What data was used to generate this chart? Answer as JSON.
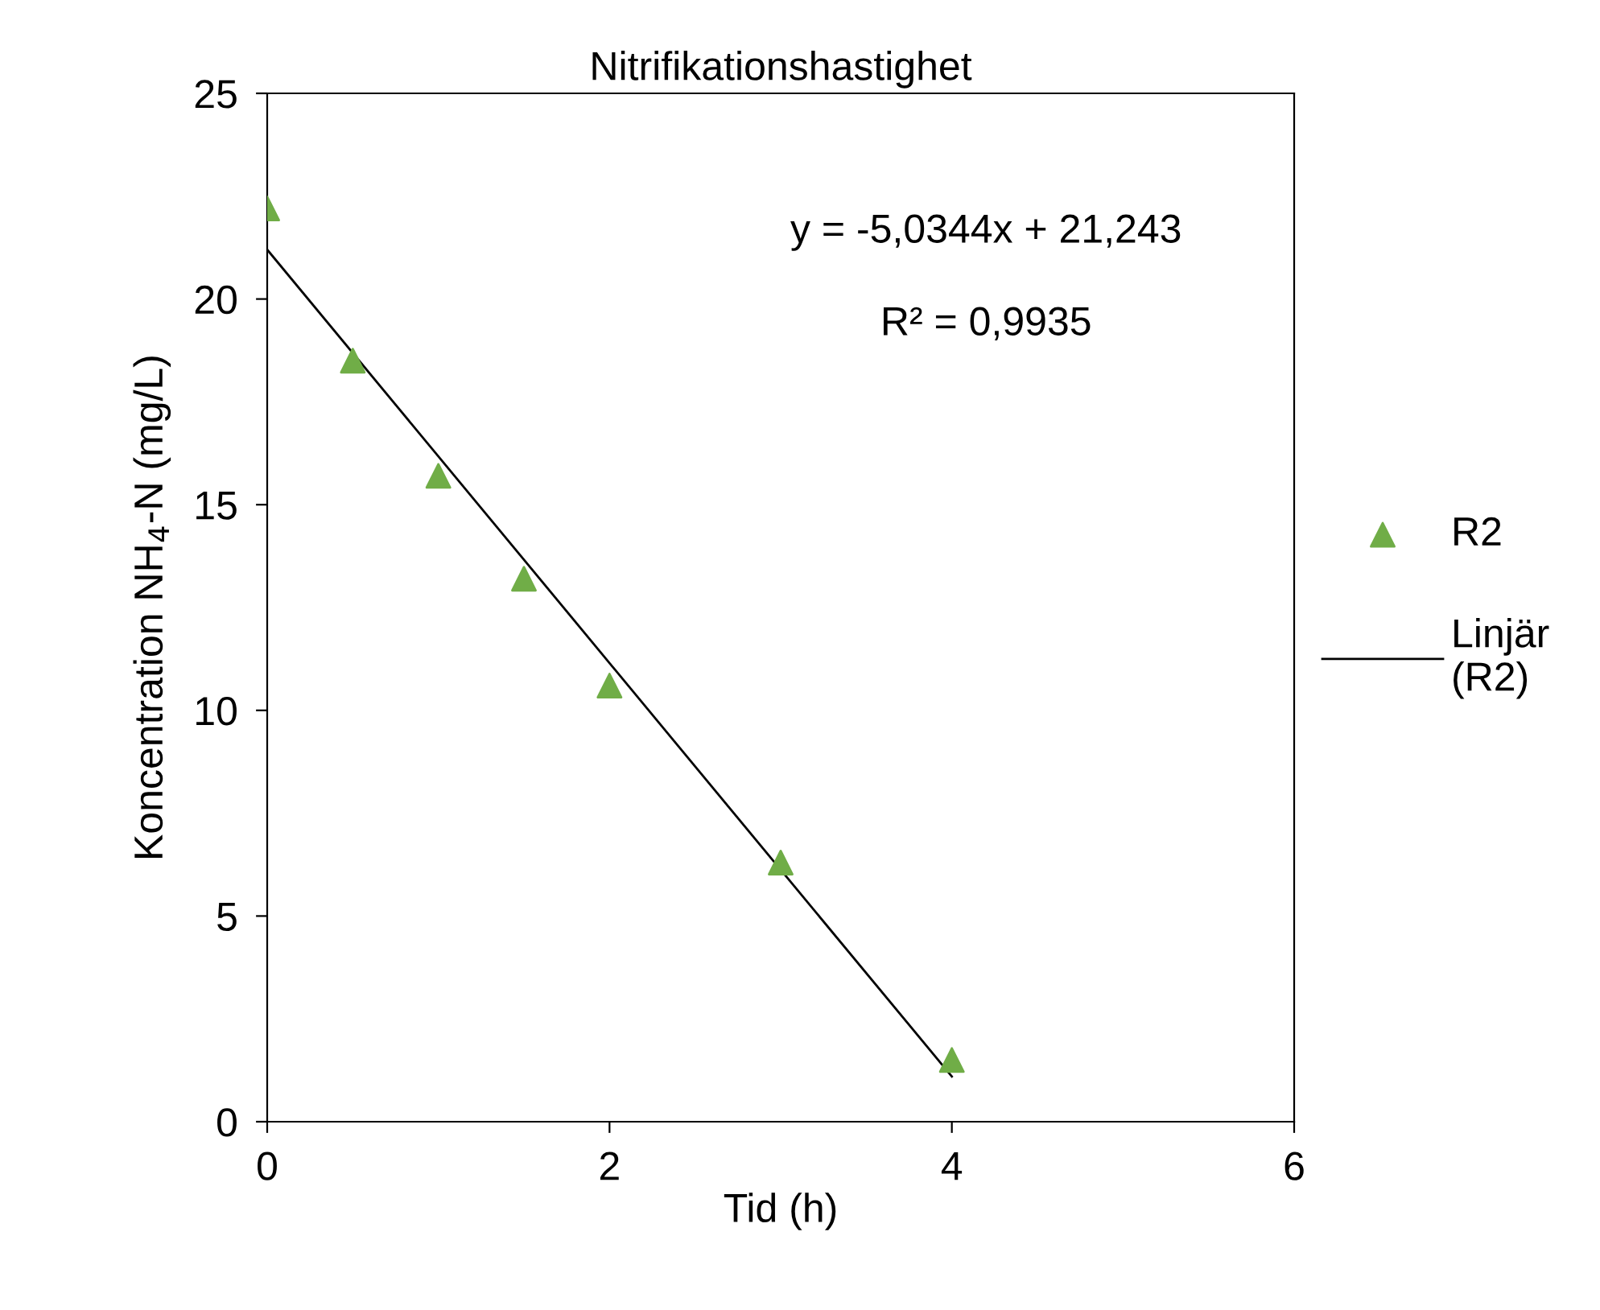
{
  "chart_data": {
    "type": "scatter",
    "title": "Nitrifikationshastighet",
    "xlabel": "Tid (h)",
    "ylabel": "Koncentration NH$_{4}$-N (mg/L)",
    "x": [
      0,
      0.5,
      1,
      1.5,
      2,
      3,
      4
    ],
    "series": [
      {
        "name": "R2",
        "color": "#70ad47",
        "marker": "triangle",
        "values": [
          22.2,
          18.5,
          15.7,
          13.2,
          10.6,
          6.3,
          1.5
        ]
      },
      {
        "name": "Linjär (R2)",
        "type": "line",
        "color": "#000000",
        "line_style": "solid",
        "marker": "none",
        "x": [
          0,
          4
        ],
        "values": [
          21.2,
          1.1
        ]
      }
    ],
    "annotations": [
      "y = -5,0344x + 21,243",
      "R² = 0,9935"
    ],
    "xlim": [
      0,
      6
    ],
    "xticks": [
      0,
      2,
      4,
      6
    ],
    "ylim": [
      0,
      25
    ],
    "yticks": [
      0,
      5,
      10,
      15,
      20,
      25
    ],
    "grid": false,
    "legend": "right"
  }
}
